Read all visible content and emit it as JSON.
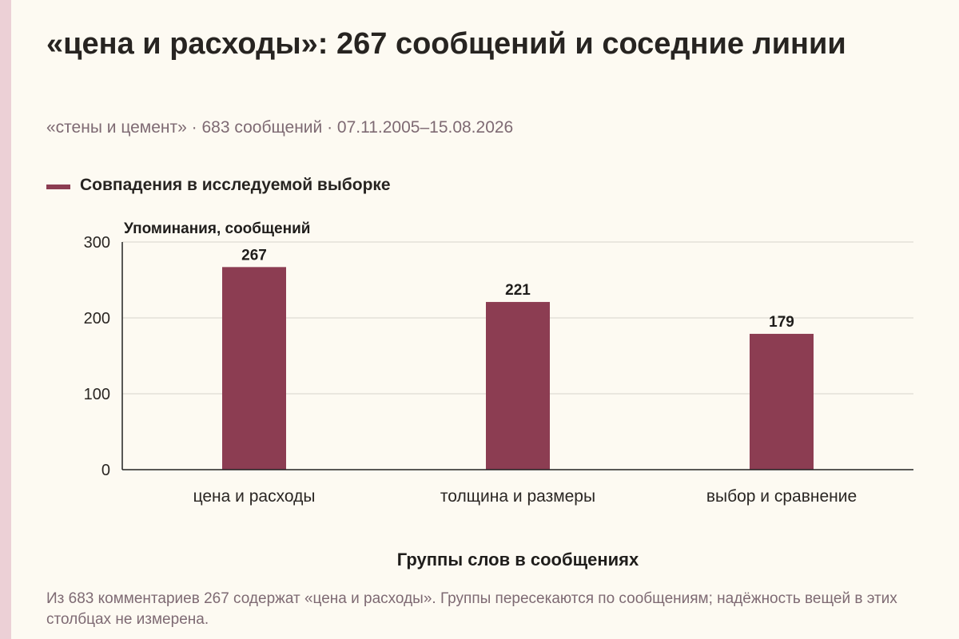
{
  "header": {
    "title": "«цена и расходы»: 267 сообщений и соседние линии",
    "subtitle": "«стены и цемент» · 683 сообщений · 07.11.2005–15.08.2026"
  },
  "footer": {
    "note": "Из 683 комментариев 267 содержат «цена и расходы». Группы пересекаются по сообщениям; надёжность вещей в этих столбцах не измерена."
  },
  "colors": {
    "bar": "#8c3d52",
    "background": "#fdfaf2",
    "accent_strip": "#ecd0d6"
  },
  "chart_data": {
    "type": "bar",
    "title": "«цена и расходы»: 267 сообщений и соседние линии",
    "subtitle": "«стены и цемент» · 683 сообщений · 07.11.2005–15.08.2026",
    "xlabel": "Группы слов в сообщениях",
    "ylabel": "Упоминания, сообщений",
    "categories": [
      "цена и расходы",
      "толщина и размеры",
      "выбор и сравнение"
    ],
    "series": [
      {
        "name": "Совпадения в исследуемой выборке",
        "values": [
          267,
          221,
          179
        ],
        "color": "#8c3d52"
      }
    ],
    "ylim": [
      0,
      300
    ],
    "yticks": [
      0,
      100,
      200,
      300
    ],
    "grid": true,
    "legend": "top-left",
    "data_labels": true
  }
}
